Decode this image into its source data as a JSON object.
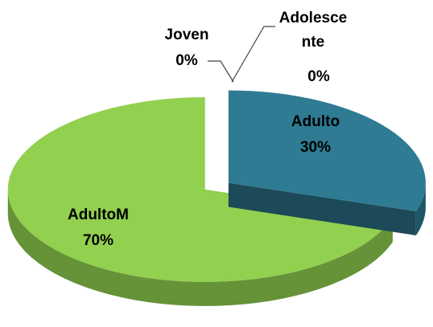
{
  "chart_data": {
    "type": "pie",
    "categories": [
      "Adolescente",
      "Adulto",
      "AdultoM",
      "Joven"
    ],
    "values": [
      0,
      30,
      70,
      0
    ],
    "value_labels": [
      "0%",
      "30%",
      "70%",
      "0%"
    ],
    "colors": [
      "#c0504d",
      "#2e7b93",
      "#92d050",
      "#4f81bd"
    ]
  }
}
